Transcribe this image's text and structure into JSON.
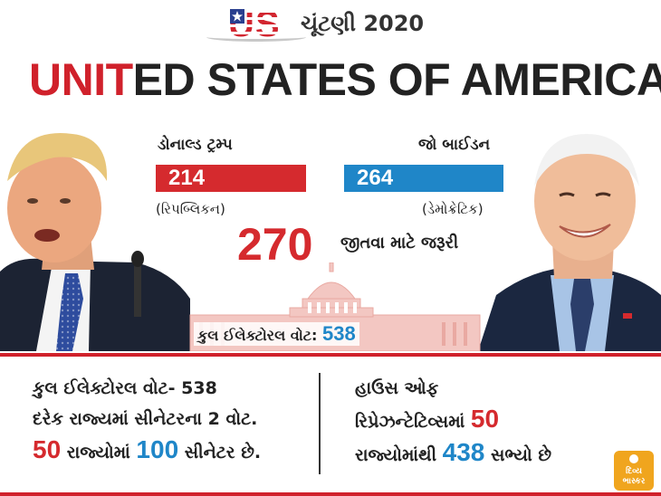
{
  "header": {
    "us_text": "US",
    "title": "ચૂંટણી 2020"
  },
  "main_title": {
    "red_part": "UNIT",
    "dark_part": "ED STATES OF AMERICA"
  },
  "candidates": {
    "trump": {
      "name": "ડોનાલ્ડ ટ્રમ્પ",
      "votes": "214",
      "party": "(રિપબ્લિકન)"
    },
    "biden": {
      "name": "જો બાઈડન",
      "votes": "264",
      "party": "(ડેમોક્રેટિક)"
    }
  },
  "needed": {
    "number": "270",
    "label": "જીતવા માટે જરૂરી"
  },
  "total": {
    "label": "કુલ ઈલેક્ટોરલ વોટ:",
    "number": "538"
  },
  "facts_left": {
    "line1": "કુલ ઈલેક્ટોરલ વોટ- 538",
    "line2": "દરેક રાજ્યમાં સીનેટરના 2 વોટ.",
    "line3_num1": "50",
    "line3_mid": " રાજ્યોમાં ",
    "line3_num2": "100",
    "line3_end": " સીનેટર છે."
  },
  "facts_right": {
    "line1": "હાઉસ ઓફ",
    "line2_text": "રિપ્રેઝન્ટેટિવ્સમાં ",
    "line2_num": "50",
    "line3_text": "રાજ્યોમાંથી ",
    "line3_num": "438",
    "line3_end": " સભ્યો છે"
  },
  "brand": {
    "text": "દિવ્ય ભાસ્કર"
  },
  "colors": {
    "republican": "#d52a2e",
    "democratic": "#1f86c8"
  }
}
